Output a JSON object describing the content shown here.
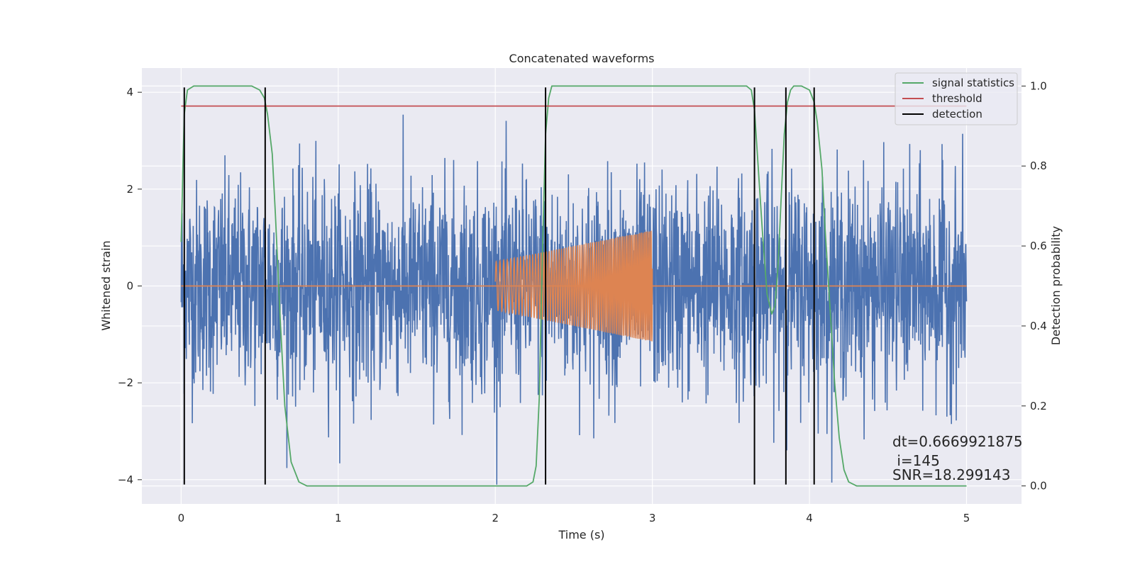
{
  "chart_data": {
    "type": "line",
    "title": "Concatenated waveforms",
    "xlabel": "Time (s)",
    "ylabel_left": "Whitened strain",
    "ylabel_right": "Detection probability",
    "xlim": [
      -0.25,
      5.35
    ],
    "ylim_left": [
      -4.5,
      4.5
    ],
    "ylim_right": [
      -0.045,
      1.045
    ],
    "x_ticks": [
      0,
      1,
      2,
      3,
      4,
      5
    ],
    "x_tick_labels": [
      "0",
      "1",
      "2",
      "3",
      "4",
      "5"
    ],
    "y_left_ticks": [
      4,
      2,
      0,
      -2,
      -4
    ],
    "y_left_tick_labels": [
      "4",
      "2",
      "0",
      "−2",
      "−4"
    ],
    "y_right_ticks": [
      1.0,
      0.8,
      0.6,
      0.4,
      0.2,
      0.0
    ],
    "y_right_tick_labels": [
      "1.0",
      "0.8",
      "0.6",
      "0.4",
      "0.2",
      "0.0"
    ],
    "grid": true,
    "legend_position": "top-right",
    "series": [
      {
        "name": "",
        "axis": "left",
        "color": "#4c72b0",
        "kind": "noise",
        "x_range": [
          0,
          5
        ],
        "amplitude_typical": 1.5,
        "min": -4.1,
        "max": 4.1
      },
      {
        "name": "",
        "axis": "left",
        "color": "#dd8452",
        "kind": "chirp",
        "flat_range": [
          0,
          5
        ],
        "chirp_range": [
          2.0,
          3.0
        ],
        "amplitude_start": 0.5,
        "amplitude_end": 1.15
      },
      {
        "name": "signal statistics",
        "axis": "right",
        "color": "#55a868",
        "x": [
          0.0,
          0.01,
          0.02,
          0.04,
          0.08,
          0.15,
          0.3,
          0.45,
          0.5,
          0.53,
          0.55,
          0.58,
          0.6,
          0.63,
          0.66,
          0.7,
          0.75,
          0.8,
          1.0,
          1.5,
          2.0,
          2.2,
          2.24,
          2.26,
          2.28,
          2.3,
          2.32,
          2.34,
          2.36,
          2.4,
          2.5,
          3.0,
          3.5,
          3.6,
          3.63,
          3.65,
          3.67,
          3.7,
          3.73,
          3.76,
          3.78,
          3.8,
          3.82,
          3.84,
          3.86,
          3.88,
          3.9,
          3.95,
          4.0,
          4.03,
          4.05,
          4.08,
          4.1,
          4.13,
          4.16,
          4.19,
          4.22,
          4.25,
          4.3,
          4.4,
          5.0
        ],
        "y": [
          0.61,
          0.78,
          0.93,
          0.99,
          1.0,
          1.0,
          1.0,
          1.0,
          0.99,
          0.97,
          0.93,
          0.83,
          0.68,
          0.42,
          0.2,
          0.06,
          0.01,
          0.0,
          0.0,
          0.0,
          0.0,
          0.0,
          0.01,
          0.05,
          0.22,
          0.58,
          0.88,
          0.97,
          1.0,
          1.0,
          1.0,
          1.0,
          1.0,
          1.0,
          0.99,
          0.94,
          0.82,
          0.64,
          0.48,
          0.43,
          0.45,
          0.55,
          0.72,
          0.88,
          0.96,
          0.99,
          1.0,
          1.0,
          0.99,
          0.96,
          0.91,
          0.79,
          0.64,
          0.45,
          0.26,
          0.12,
          0.04,
          0.01,
          0.0,
          0.0,
          0.0
        ]
      },
      {
        "name": "threshold",
        "axis": "right",
        "color": "#c44e52",
        "x": [
          0,
          5
        ],
        "y": [
          0.95,
          0.95
        ]
      },
      {
        "name": "detection",
        "axis": "right",
        "color": "#000000",
        "vlines_x": [
          0.02,
          0.535,
          2.32,
          3.65,
          3.85,
          4.03
        ]
      }
    ],
    "annotations": [
      "dt=0.6669921875",
      " i=145",
      "SNR=18.299143"
    ]
  }
}
